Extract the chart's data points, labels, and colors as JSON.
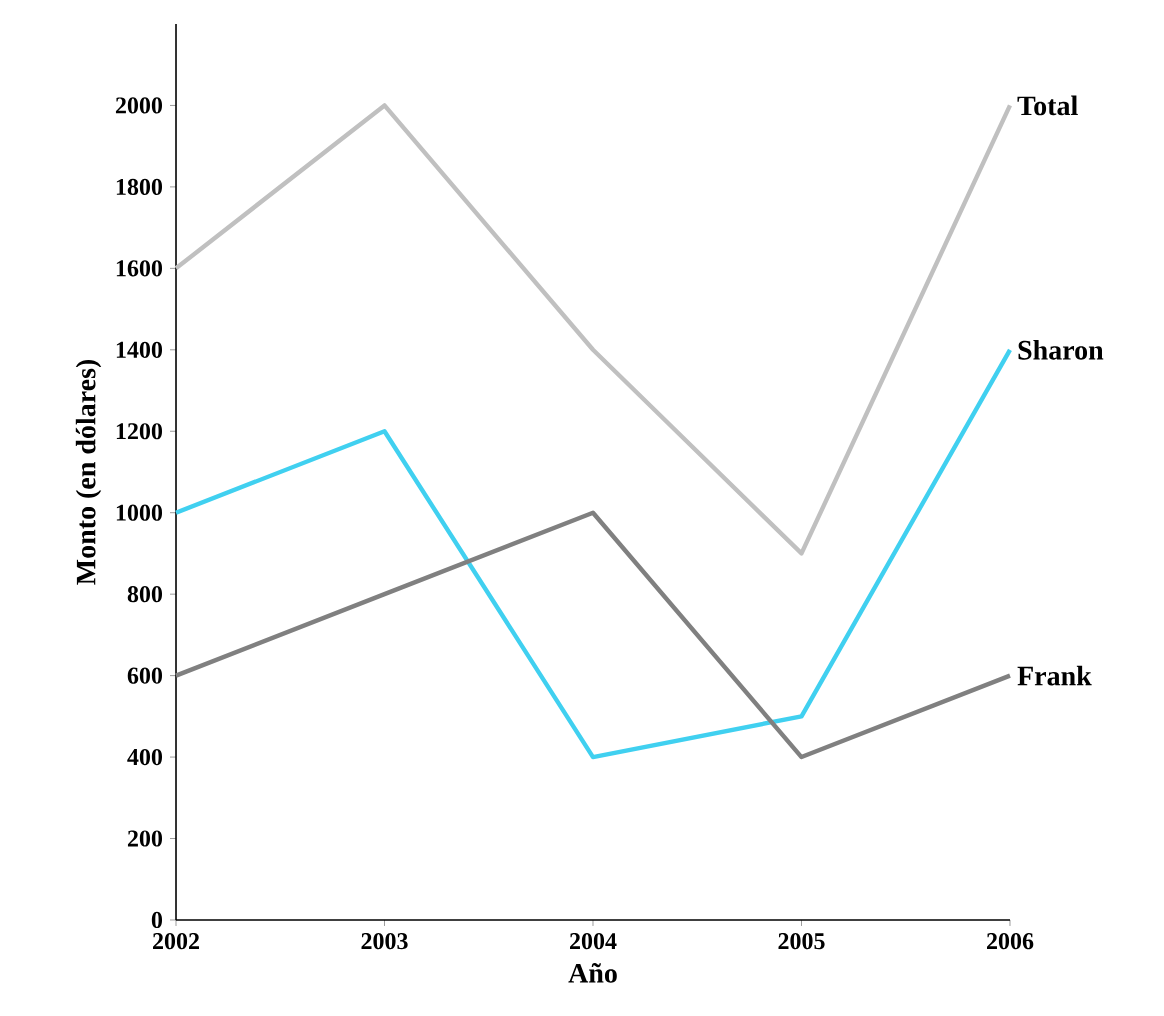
{
  "chart_data": {
    "type": "line",
    "xlabel": "Año",
    "ylabel": "Monto (en dólares)",
    "x": [
      2002,
      2003,
      2004,
      2005,
      2006
    ],
    "series": [
      {
        "name": "Total",
        "color": "#c0c0c0",
        "values": [
          1600,
          2000,
          1400,
          900,
          2000
        ]
      },
      {
        "name": "Sharon",
        "color": "#40d0f0",
        "values": [
          1000,
          1200,
          400,
          500,
          1400
        ]
      },
      {
        "name": "Frank",
        "color": "#808080",
        "values": [
          600,
          800,
          1000,
          400,
          600
        ]
      }
    ],
    "xlim": [
      2002,
      2006
    ],
    "ylim": [
      0,
      2200
    ],
    "xticks": [
      2002,
      2003,
      2004,
      2005,
      2006
    ],
    "yticks": [
      0,
      200,
      400,
      600,
      800,
      1000,
      1200,
      1400,
      1600,
      1800,
      2000
    ],
    "legend": false,
    "grid": false,
    "marker": "none",
    "line_style": "solid"
  }
}
